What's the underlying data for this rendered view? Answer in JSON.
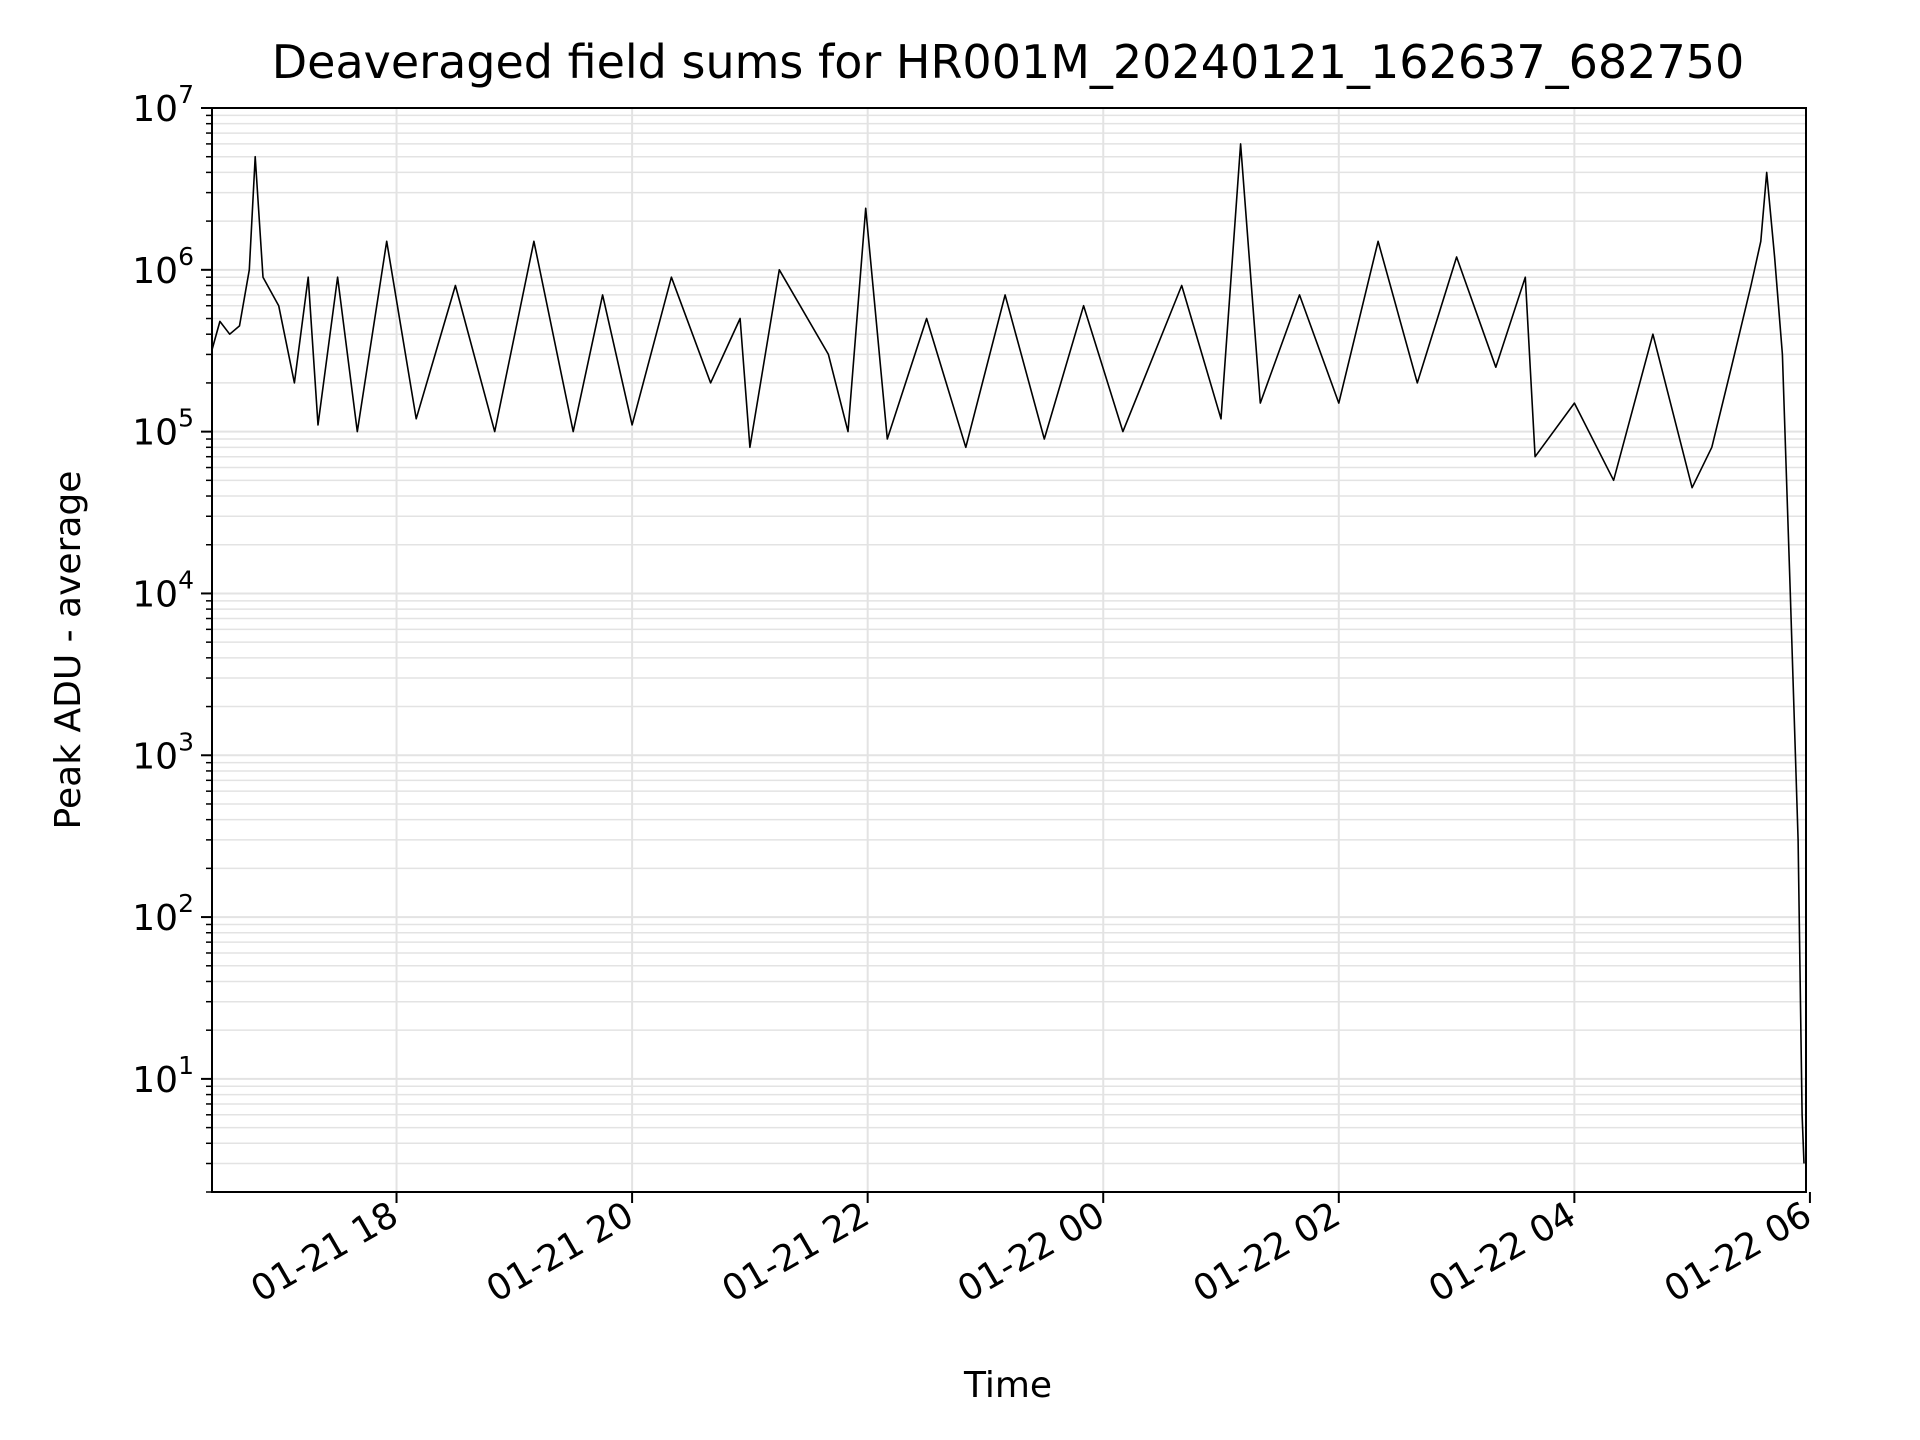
{
  "chart_data": {
    "type": "line",
    "title": "Deaveraged field sums for HR001M_20240121_162637_682750",
    "xlabel": "Time",
    "ylabel": "Peak ADU - average",
    "yscale": "log",
    "xlim": [
      "2024-01-21 16:26",
      "2024-01-22 05:58"
    ],
    "ylim": [
      2,
      10000000
    ],
    "grid": true,
    "line_color": "#000000",
    "grid_color": "#e3e3e3",
    "x_ticks": [
      {
        "at": "2024-01-21 18:00",
        "label": "01-21 18"
      },
      {
        "at": "2024-01-21 20:00",
        "label": "01-21 20"
      },
      {
        "at": "2024-01-21 22:00",
        "label": "01-21 22"
      },
      {
        "at": "2024-01-22 00:00",
        "label": "01-22 00"
      },
      {
        "at": "2024-01-22 02:00",
        "label": "01-22 02"
      },
      {
        "at": "2024-01-22 04:00",
        "label": "01-22 04"
      },
      {
        "at": "2024-01-22 06:00",
        "label": "01-22 06"
      }
    ],
    "y_ticks": [
      {
        "value": 10,
        "base": "10",
        "exp": "1"
      },
      {
        "value": 100,
        "base": "10",
        "exp": "2"
      },
      {
        "value": 1000,
        "base": "10",
        "exp": "3"
      },
      {
        "value": 10000,
        "base": "10",
        "exp": "4"
      },
      {
        "value": 100000,
        "base": "10",
        "exp": "5"
      },
      {
        "value": 1000000,
        "base": "10",
        "exp": "6"
      },
      {
        "value": 10000000,
        "base": "10",
        "exp": "7"
      }
    ],
    "series": [
      {
        "points": [
          [
            "2024-01-21 16:26",
            320000
          ],
          [
            "2024-01-21 16:30",
            480000
          ],
          [
            "2024-01-21 16:35",
            400000
          ],
          [
            "2024-01-21 16:40",
            450000
          ],
          [
            "2024-01-21 16:45",
            1000000
          ],
          [
            "2024-01-21 16:48",
            5000000
          ],
          [
            "2024-01-21 16:52",
            900000
          ],
          [
            "2024-01-21 17:00",
            600000
          ],
          [
            "2024-01-21 17:08",
            200000
          ],
          [
            "2024-01-21 17:15",
            900000
          ],
          [
            "2024-01-21 17:20",
            110000
          ],
          [
            "2024-01-21 17:30",
            900000
          ],
          [
            "2024-01-21 17:40",
            100000
          ],
          [
            "2024-01-21 17:55",
            1500000
          ],
          [
            "2024-01-21 18:10",
            120000
          ],
          [
            "2024-01-21 18:30",
            800000
          ],
          [
            "2024-01-21 18:50",
            100000
          ],
          [
            "2024-01-21 19:10",
            1500000
          ],
          [
            "2024-01-21 19:30",
            100000
          ],
          [
            "2024-01-21 19:45",
            700000
          ],
          [
            "2024-01-21 20:00",
            110000
          ],
          [
            "2024-01-21 20:20",
            900000
          ],
          [
            "2024-01-21 20:40",
            200000
          ],
          [
            "2024-01-21 20:55",
            500000
          ],
          [
            "2024-01-21 21:00",
            80000
          ],
          [
            "2024-01-21 21:15",
            1000000
          ],
          [
            "2024-01-21 21:40",
            300000
          ],
          [
            "2024-01-21 21:50",
            100000
          ],
          [
            "2024-01-21 21:59",
            2400000
          ],
          [
            "2024-01-21 22:10",
            90000
          ],
          [
            "2024-01-21 22:30",
            500000
          ],
          [
            "2024-01-21 22:50",
            80000
          ],
          [
            "2024-01-21 23:10",
            700000
          ],
          [
            "2024-01-21 23:30",
            90000
          ],
          [
            "2024-01-21 23:50",
            600000
          ],
          [
            "2024-01-22 00:10",
            100000
          ],
          [
            "2024-01-22 00:40",
            800000
          ],
          [
            "2024-01-22 01:00",
            120000
          ],
          [
            "2024-01-22 01:10",
            6000000
          ],
          [
            "2024-01-22 01:20",
            150000
          ],
          [
            "2024-01-22 01:40",
            700000
          ],
          [
            "2024-01-22 02:00",
            150000
          ],
          [
            "2024-01-22 02:20",
            1500000
          ],
          [
            "2024-01-22 02:40",
            200000
          ],
          [
            "2024-01-22 03:00",
            1200000
          ],
          [
            "2024-01-22 03:20",
            250000
          ],
          [
            "2024-01-22 03:35",
            900000
          ],
          [
            "2024-01-22 03:40",
            70000
          ],
          [
            "2024-01-22 04:00",
            150000
          ],
          [
            "2024-01-22 04:20",
            50000
          ],
          [
            "2024-01-22 04:40",
            400000
          ],
          [
            "2024-01-22 05:00",
            45000
          ],
          [
            "2024-01-22 05:10",
            80000
          ],
          [
            "2024-01-22 05:20",
            250000
          ],
          [
            "2024-01-22 05:30",
            800000
          ],
          [
            "2024-01-22 05:35",
            1500000
          ],
          [
            "2024-01-22 05:38",
            4000000
          ],
          [
            "2024-01-22 05:42",
            1200000
          ],
          [
            "2024-01-22 05:46",
            300000
          ],
          [
            "2024-01-22 05:50",
            10000
          ],
          [
            "2024-01-22 05:54",
            300
          ],
          [
            "2024-01-22 05:56",
            6
          ],
          [
            "2024-01-22 05:57",
            3
          ]
        ]
      }
    ]
  }
}
